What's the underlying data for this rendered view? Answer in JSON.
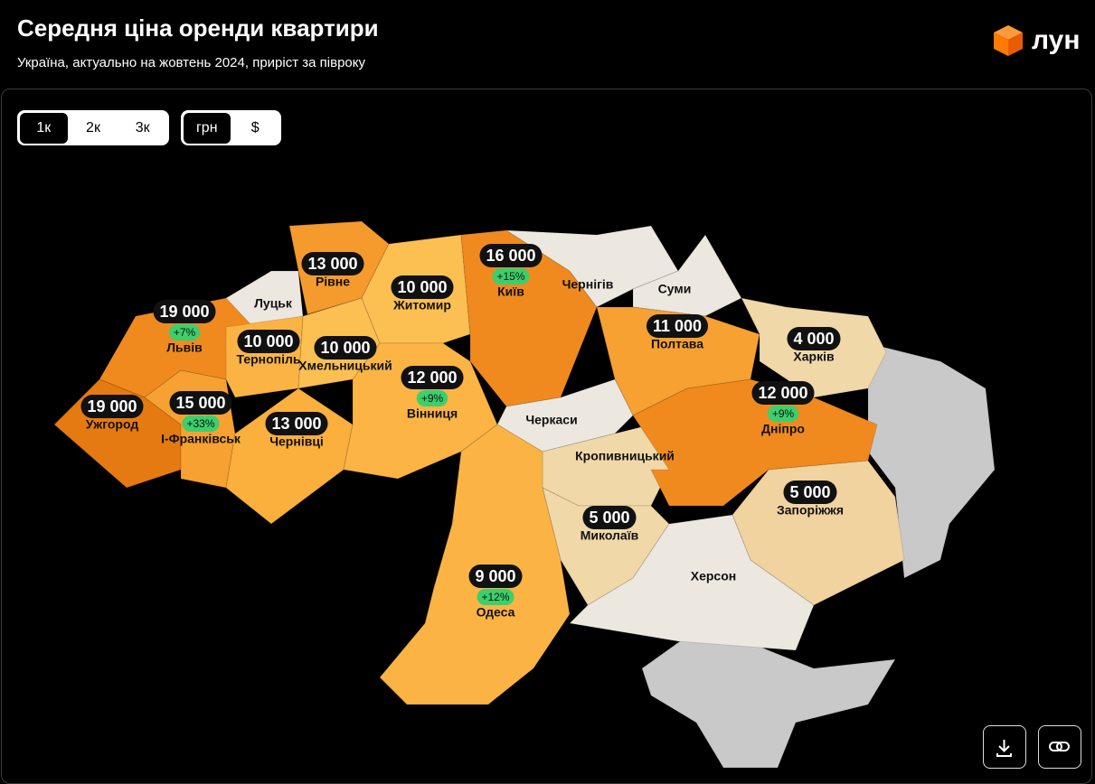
{
  "header": {
    "title": "Середня ціна оренди квартири",
    "subtitle": "Україна, актуально на жовтень 2024, приріст за півроку",
    "logo": "лун"
  },
  "controls": {
    "rooms": [
      "1к",
      "2к",
      "3к"
    ],
    "currency": [
      "грн",
      "$"
    ]
  },
  "regions": [
    {
      "name": "Рівне",
      "price": "13 000"
    },
    {
      "name": "Луцьк"
    },
    {
      "name": "Львів",
      "price": "19 000",
      "change": "+7%"
    },
    {
      "name": "Тернопіль",
      "price": "10 000"
    },
    {
      "name": "Хмельницький",
      "price": "10 000"
    },
    {
      "name": "Житомир",
      "price": "10 000"
    },
    {
      "name": "Київ",
      "price": "16 000",
      "change": "+15%"
    },
    {
      "name": "Чернігів"
    },
    {
      "name": "Суми"
    },
    {
      "name": "Полтава",
      "price": "11 000"
    },
    {
      "name": "Харків",
      "price": "4 000"
    },
    {
      "name": "Ужгород",
      "price": "19 000"
    },
    {
      "name": "І-Франківськ",
      "price": "15 000",
      "change": "+33%"
    },
    {
      "name": "Чернівці",
      "price": "13 000"
    },
    {
      "name": "Вінниця",
      "price": "12 000",
      "change": "+9%"
    },
    {
      "name": "Черкаси"
    },
    {
      "name": "Кропивницький"
    },
    {
      "name": "Дніпро",
      "price": "12 000",
      "change": "+9%"
    },
    {
      "name": "Запоріжжя",
      "price": "5 000"
    },
    {
      "name": "Миколаїв",
      "price": "5 000"
    },
    {
      "name": "Херсон"
    },
    {
      "name": "Одеса",
      "price": "9 000",
      "change": "+12%"
    }
  ]
}
